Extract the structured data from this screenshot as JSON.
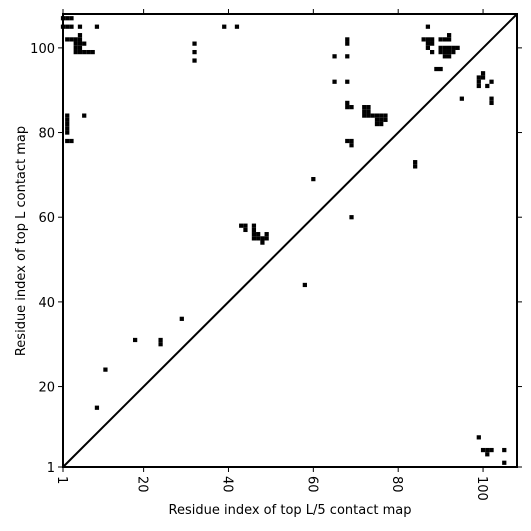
{
  "chart_data": {
    "type": "heatmap",
    "title": "",
    "xlabel": "Residue index of top L/5 contact map",
    "ylabel": "Residue index of top L contact map",
    "xlim": [
      1,
      108
    ],
    "ylim": [
      1,
      108
    ],
    "x_ticks": [
      1,
      20,
      40,
      60,
      80,
      100
    ],
    "y_ticks": [
      1,
      20,
      40,
      60,
      80,
      100
    ],
    "x_tick_labels": [
      "1",
      "20",
      "40",
      "60",
      "80",
      "100"
    ],
    "y_tick_labels": [
      "1",
      "20",
      "40",
      "60",
      "80",
      "100"
    ],
    "x_tick_rotation_deg": -90,
    "diagonal_line": true,
    "grid": false,
    "cell_color": "#000000",
    "upper_triangle_contacts": [
      [
        1,
        107
      ],
      [
        2,
        107
      ],
      [
        3,
        107
      ],
      [
        1,
        105
      ],
      [
        2,
        105
      ],
      [
        3,
        105
      ],
      [
        5,
        105
      ],
      [
        9,
        105
      ],
      [
        2,
        102
      ],
      [
        3,
        102
      ],
      [
        4,
        102
      ],
      [
        5,
        102
      ],
      [
        5,
        103
      ],
      [
        4,
        101
      ],
      [
        5,
        101
      ],
      [
        6,
        101
      ],
      [
        4,
        100
      ],
      [
        5,
        100
      ],
      [
        4,
        99
      ],
      [
        5,
        99
      ],
      [
        6,
        99
      ],
      [
        7,
        99
      ],
      [
        8,
        99
      ],
      [
        2,
        84
      ],
      [
        2,
        83
      ],
      [
        2,
        82
      ],
      [
        2,
        81
      ],
      [
        2,
        80
      ],
      [
        6,
        84
      ],
      [
        2,
        78
      ],
      [
        3,
        78
      ],
      [
        32,
        101
      ],
      [
        32,
        99
      ],
      [
        32,
        97
      ],
      [
        39,
        105
      ],
      [
        42,
        105
      ],
      [
        65,
        98
      ],
      [
        65,
        92
      ],
      [
        68,
        102
      ],
      [
        68,
        101
      ],
      [
        68,
        98
      ],
      [
        68,
        92
      ],
      [
        68,
        87
      ],
      [
        68,
        86
      ],
      [
        69,
        86
      ],
      [
        68,
        78
      ],
      [
        69,
        78
      ],
      [
        69,
        77
      ],
      [
        60,
        69
      ],
      [
        69,
        60
      ],
      [
        72,
        86
      ],
      [
        73,
        86
      ],
      [
        72,
        85
      ],
      [
        73,
        85
      ],
      [
        72,
        84
      ],
      [
        73,
        84
      ],
      [
        74,
        84
      ],
      [
        75,
        84
      ],
      [
        76,
        84
      ],
      [
        77,
        84
      ],
      [
        75,
        83
      ],
      [
        76,
        83
      ],
      [
        77,
        83
      ],
      [
        75,
        82
      ],
      [
        76,
        82
      ],
      [
        84,
        73
      ],
      [
        84,
        72
      ],
      [
        86,
        102
      ],
      [
        87,
        102
      ],
      [
        88,
        102
      ],
      [
        87,
        105
      ],
      [
        87,
        101
      ],
      [
        88,
        101
      ],
      [
        87,
        100
      ],
      [
        88,
        99
      ],
      [
        89,
        95
      ],
      [
        90,
        95
      ],
      [
        90,
        102
      ],
      [
        91,
        102
      ],
      [
        92,
        102
      ],
      [
        92,
        103
      ],
      [
        90,
        100
      ],
      [
        91,
        100
      ],
      [
        92,
        100
      ],
      [
        93,
        100
      ],
      [
        94,
        100
      ],
      [
        90,
        99
      ],
      [
        91,
        99
      ],
      [
        92,
        99
      ],
      [
        93,
        99
      ],
      [
        91,
        98
      ],
      [
        92,
        98
      ],
      [
        95,
        88
      ],
      [
        99,
        93
      ],
      [
        100,
        93
      ],
      [
        100,
        94
      ],
      [
        99,
        92
      ],
      [
        99,
        91
      ],
      [
        101,
        91
      ],
      [
        102,
        92
      ],
      [
        102,
        88
      ],
      [
        102,
        87
      ]
    ],
    "lower_triangle_contacts": [
      [
        43,
        58
      ],
      [
        44,
        58
      ],
      [
        44,
        57
      ],
      [
        46,
        58
      ],
      [
        46,
        57
      ],
      [
        46,
        56
      ],
      [
        46,
        55
      ],
      [
        47,
        56
      ],
      [
        47,
        55
      ],
      [
        48,
        55
      ],
      [
        48,
        54
      ],
      [
        49,
        56
      ],
      [
        49,
        55
      ],
      [
        58,
        44
      ],
      [
        29,
        36
      ],
      [
        24,
        31
      ],
      [
        24,
        30
      ],
      [
        18,
        31
      ],
      [
        11,
        24
      ],
      [
        9,
        15
      ],
      [
        99,
        8
      ],
      [
        100,
        5
      ],
      [
        101,
        5
      ],
      [
        102,
        5
      ],
      [
        101,
        4
      ],
      [
        105,
        5
      ],
      [
        105,
        2
      ]
    ]
  }
}
